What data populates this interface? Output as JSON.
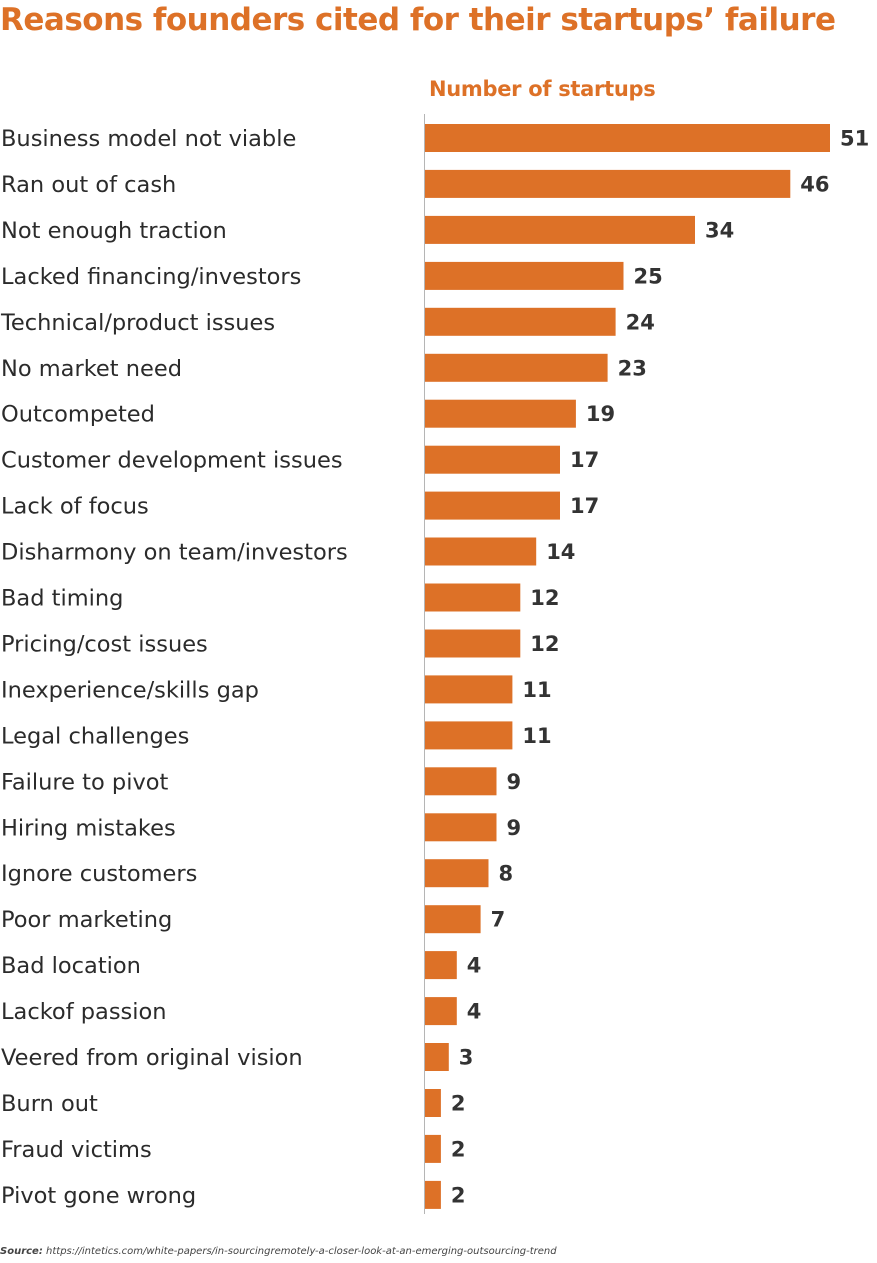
{
  "chart_data": {
    "type": "bar",
    "orientation": "horizontal",
    "title": "Reasons founders cited  for their startups’ failure",
    "subtitle": "Number of startups",
    "categories": [
      "Business model not viable",
      "Ran out of cash",
      "Not enough traction",
      "Lacked financing/investors",
      "Technical/product issues",
      "No market need",
      "Outcompeted",
      "Customer development issues",
      "Lack of focus",
      "Disharmony on team/investors",
      "Bad timing",
      "Pricing/cost issues",
      "Inexperience/skills gap",
      "Legal challenges",
      "Failure to pivot",
      "Hiring mistakes",
      "Ignore customers",
      "Poor marketing",
      "Bad location",
      "Lackof passion",
      "Veered from original vision",
      "Burn out",
      "Fraud victims",
      "Pivot gone wrong"
    ],
    "values": [
      51,
      46,
      34,
      25,
      24,
      23,
      19,
      17,
      17,
      14,
      12,
      12,
      11,
      11,
      9,
      9,
      8,
      7,
      4,
      4,
      3,
      2,
      2,
      2
    ],
    "xlim": [
      0,
      51
    ],
    "bar_color": "#dd7127",
    "grid": false,
    "data_labels": true
  },
  "source": {
    "label": "Source:",
    "text": "https://intetics.com/white-papers/in-sourcingremotely-a-closer-look-at-an-emerging-outsourcing-trend"
  }
}
